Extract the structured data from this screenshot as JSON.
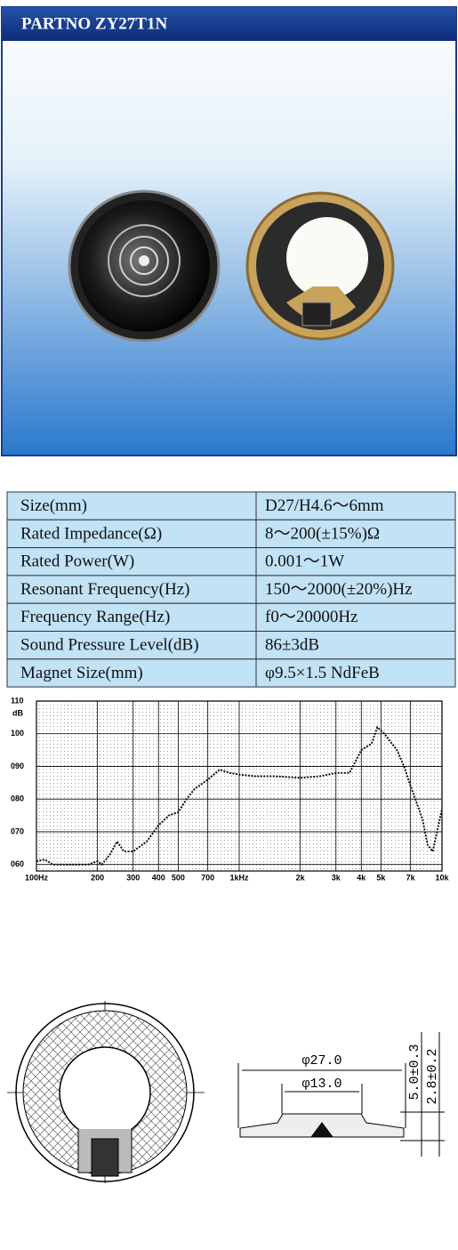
{
  "header": {
    "title": "PARTNO  ZY27T1N"
  },
  "specs": {
    "rows": [
      [
        "Size(mm)",
        "D27/H4.6～6mm"
      ],
      [
        "Rated Impedance(Ω)",
        "8～200(±15%)Ω"
      ],
      [
        "Rated Power(W)",
        "0.001～1W"
      ],
      [
        "Resonant Frequency(Hz)",
        "150～2000(±20%)Hz"
      ],
      [
        "Frequency Range(Hz)",
        "f0～20000Hz"
      ],
      [
        "Sound Pressure Level(dB)",
        "86±3dB"
      ],
      [
        "Magnet Size(mm)",
        "φ9.5×1.5 NdFeB"
      ]
    ]
  },
  "chart_data": {
    "type": "line",
    "y_label": "dB",
    "xscale": "log",
    "grid": true,
    "color": "#111111",
    "x": [
      100,
      110,
      120,
      150,
      180,
      200,
      210,
      230,
      250,
      270,
      300,
      350,
      400,
      450,
      500,
      550,
      600,
      700,
      800,
      900,
      1000,
      1200,
      1500,
      2000,
      2500,
      3000,
      3500,
      4000,
      4500,
      4800,
      5200,
      6000,
      6500,
      7000,
      8000,
      8500,
      9000,
      10000
    ],
    "values": [
      61,
      61.5,
      60,
      60,
      60,
      61,
      60,
      63,
      67,
      64,
      64,
      67,
      72,
      75,
      76,
      80,
      83,
      86,
      89,
      88,
      87.5,
      87,
      87,
      86.5,
      87,
      88,
      88,
      95,
      97,
      102,
      100,
      95,
      90,
      84,
      74,
      66,
      64,
      77
    ],
    "xlim": [
      100,
      10000
    ],
    "ylim": [
      58,
      110
    ],
    "xticks": [
      {
        "value": 100,
        "label": "100Hz"
      },
      200,
      300,
      400,
      500,
      700,
      {
        "value": 1000,
        "label": "1kHz"
      },
      {
        "value": 2000,
        "label": "2k"
      },
      {
        "value": 3000,
        "label": "3k"
      },
      {
        "value": 4000,
        "label": "4k"
      },
      {
        "value": 5000,
        "label": "5k"
      },
      {
        "value": 7000,
        "label": "7k"
      },
      {
        "value": 10000,
        "label": "10k"
      }
    ],
    "yticks": [
      {
        "value": 60,
        "label": "060"
      },
      {
        "value": 70,
        "label": "070"
      },
      {
        "value": 80,
        "label": "080"
      },
      {
        "value": 90,
        "label": "090"
      },
      100,
      110
    ]
  },
  "drawing": {
    "outer_diameter": "φ27.0",
    "inner_diameter": "φ13.0",
    "height_total": "5.0±0.3",
    "height_body": "2.8±0.2"
  }
}
